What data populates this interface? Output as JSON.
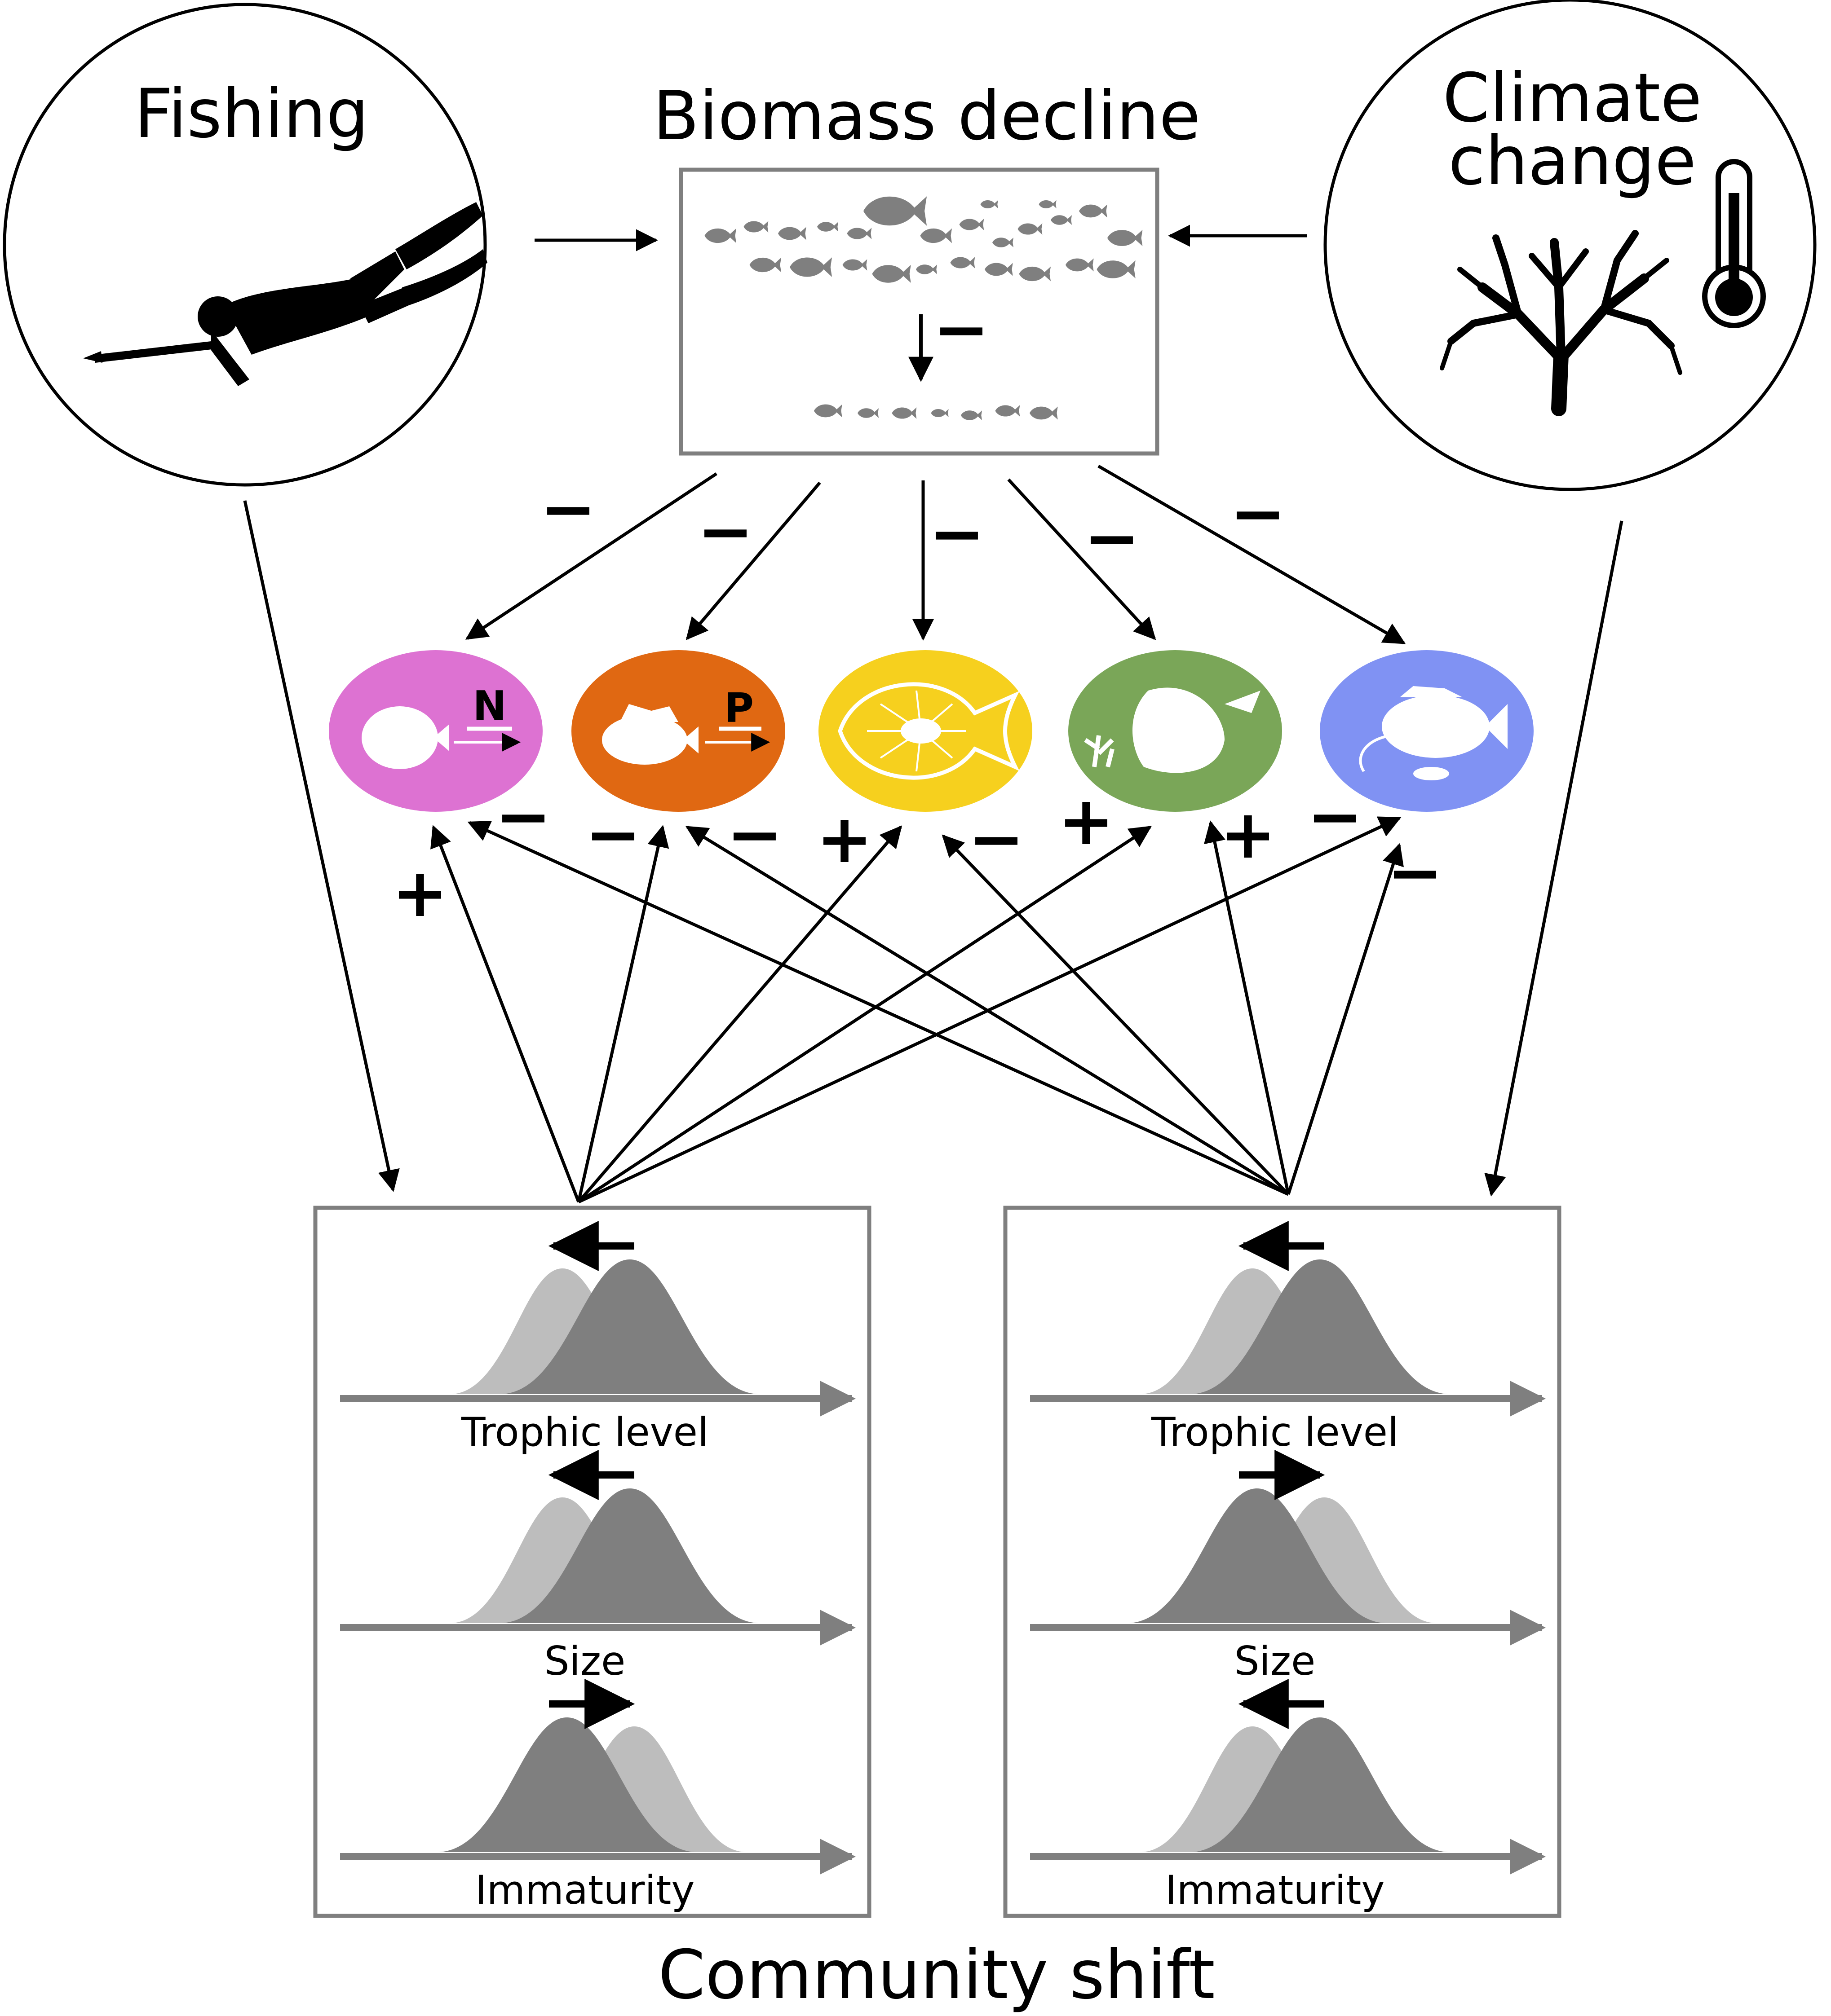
{
  "drivers": {
    "fishing": {
      "label": "Fishing",
      "icon": "spearfisher-icon"
    },
    "climate": {
      "line1": "Climate",
      "line2": "change",
      "icons": [
        "coral-icon",
        "thermometer-icon"
      ]
    }
  },
  "biomass": {
    "title": "Biomass decline",
    "effect_sign": "−"
  },
  "groups": [
    {
      "id": "nutrient-cycling",
      "color": "#dd72d2",
      "letter": "N",
      "icon": "butterflyfish-icon"
    },
    {
      "id": "productivity",
      "color": "#e06812",
      "letter": "P",
      "icon": "grouper-icon"
    },
    {
      "id": "food-web",
      "color": "#f6d01e",
      "letter": "",
      "icon": "food-web-fish-icon"
    },
    {
      "id": "herbivory",
      "color": "#7aa658",
      "letter": "",
      "icon": "herbivore-fish-algae-icon"
    },
    {
      "id": "piscivory",
      "color": "#8092f3",
      "letter": "",
      "icon": "predator-fish-icon"
    }
  ],
  "biomass_effect_signs": [
    "−",
    "−",
    "−",
    "−",
    "−"
  ],
  "community_effect_signs": {
    "fishing": [
      "+",
      "−",
      "+",
      "+",
      "−"
    ],
    "climate": [
      "−",
      "−",
      "−",
      "+",
      "−"
    ]
  },
  "community_panels": [
    {
      "id": "fishing-community",
      "rows": [
        {
          "label": "Trophic level",
          "shift": "left"
        },
        {
          "label": "Size",
          "shift": "left"
        },
        {
          "label": "Immaturity",
          "shift": "right"
        }
      ]
    },
    {
      "id": "climate-community",
      "rows": [
        {
          "label": "Trophic level",
          "shift": "left"
        },
        {
          "label": "Size",
          "shift": "right"
        },
        {
          "label": "Immaturity",
          "shift": "left"
        }
      ]
    }
  ],
  "footer": {
    "title": "Community shift"
  },
  "colors": {
    "before_curve": "#7f7f7f",
    "after_curve": "#bdbdbd",
    "frame": "#7f7f7f",
    "arrow": "#000000"
  }
}
